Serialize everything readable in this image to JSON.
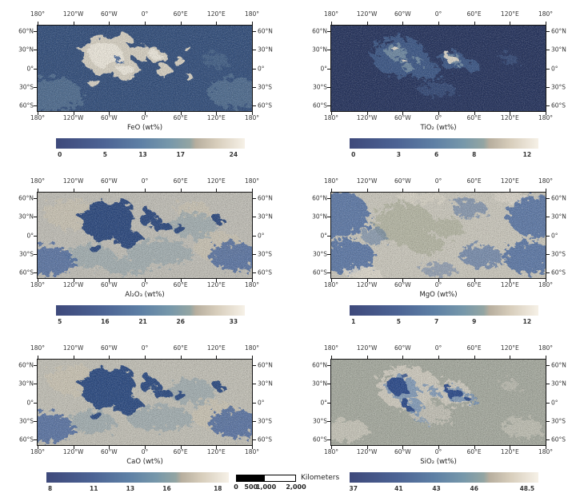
{
  "axes": {
    "lon_ticks": [
      "180°",
      "120°W",
      "60°W",
      "0°",
      "60°E",
      "120°E",
      "180°"
    ],
    "lat_ticks": [
      "60°N",
      "30°N",
      "0°",
      "30°S",
      "60°S"
    ]
  },
  "colorbar": {
    "gradient_colors": [
      "#3e497b",
      "#4c6394",
      "#5e80a5",
      "#7697aa",
      "#93a5a3",
      "#b7ae9e",
      "#d7cdbb",
      "#f6f1e7"
    ]
  },
  "panels": [
    {
      "id": "feo",
      "title": "FeO (wt%)",
      "colorbar_ticks": [
        "0",
        "5",
        "13",
        "17",
        "24"
      ]
    },
    {
      "id": "tio2",
      "title": "TiO₂ (wt%)",
      "colorbar_ticks": [
        "0",
        "3",
        "6",
        "8",
        "12"
      ]
    },
    {
      "id": "al2o3",
      "title": "Al₂O₃ (wt%)",
      "colorbar_ticks": [
        "5",
        "16",
        "21",
        "26",
        "33"
      ]
    },
    {
      "id": "mgo",
      "title": "MgO (wt%)",
      "colorbar_ticks": [
        "1",
        "5",
        "7",
        "9",
        "12"
      ]
    },
    {
      "id": "cao",
      "title": "CaO (wt%)",
      "colorbar_ticks": [
        "8",
        "11",
        "13",
        "16",
        "18"
      ]
    },
    {
      "id": "sio2",
      "title": "SiO₂ (wt%)",
      "colorbar_ticks": [
        "37",
        "41",
        "43",
        "46",
        "48.5"
      ]
    }
  ],
  "scalebar": {
    "unit": "Kilometers",
    "ticks": [
      "0",
      "500",
      "1,000",
      "2,000"
    ]
  },
  "colors": {
    "map_frame": "#151515",
    "text": "#333333",
    "background": "#ffffff"
  }
}
